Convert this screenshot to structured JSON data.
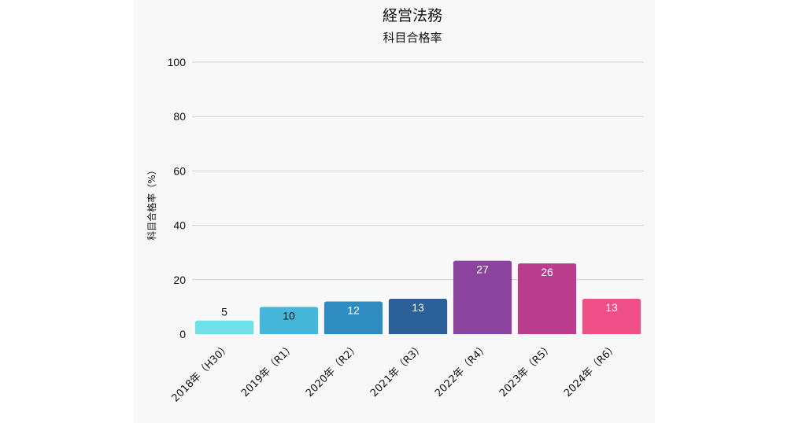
{
  "chart_data": {
    "type": "bar",
    "title": "経営法務",
    "subtitle": "科目合格率",
    "ylabel": "科目合格率（%）",
    "xlabel": "",
    "ylim": [
      0,
      100
    ],
    "yticks": [
      0,
      20,
      40,
      60,
      80,
      100
    ],
    "grid": true,
    "legend": "none",
    "categories": [
      "2018年（H30）",
      "2019年（R1）",
      "2020年（R2）",
      "2021年（R3）",
      "2022年（R4）",
      "2023年（R5）",
      "2024年（R6）"
    ],
    "values": [
      5,
      10,
      12,
      13,
      27,
      26,
      13
    ],
    "colors": [
      "#6ee0e6",
      "#45b7da",
      "#2e8cc1",
      "#2b5f98",
      "#8a449d",
      "#bb3d8e",
      "#ee4f86"
    ],
    "label_colors": [
      "#111111",
      "#111111",
      "#ffffff",
      "#ffffff",
      "#ffffff",
      "#ffffff",
      "#ffffff"
    ]
  }
}
